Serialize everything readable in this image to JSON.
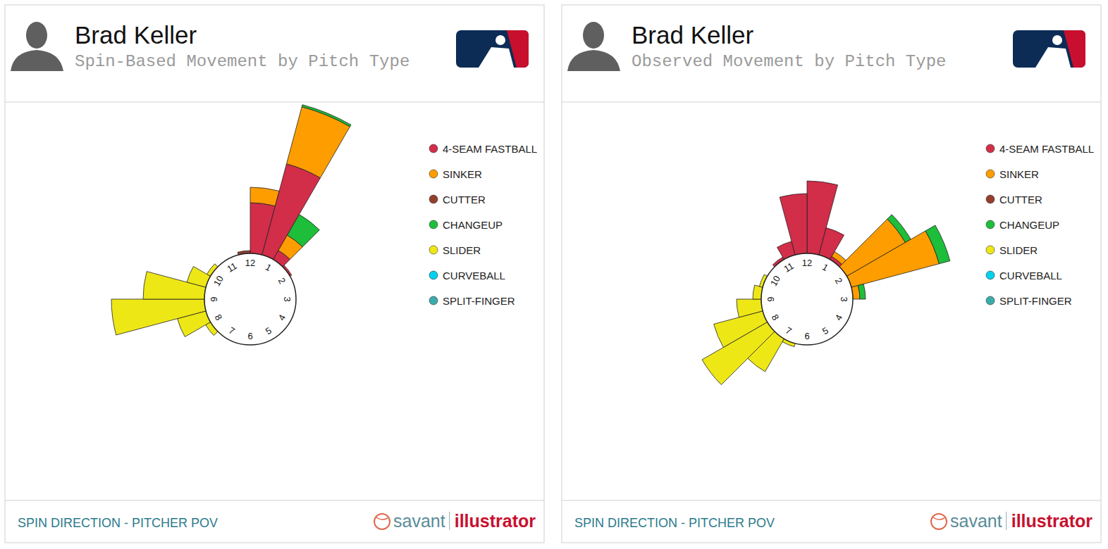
{
  "chart_data": [
    {
      "type": "polar_bar",
      "title": "Brad Keller",
      "subtitle": "Spin-Based Movement by Pitch Type",
      "footer": "SPIN DIRECTION - PITCHER POV",
      "credit": [
        "savant",
        "illustrator"
      ],
      "categories": [
        "12",
        null,
        "1",
        null,
        "2",
        null,
        "3",
        null,
        "4",
        null,
        "5",
        null,
        "6",
        null,
        "7",
        null,
        "8",
        null,
        "9",
        null,
        "10",
        null,
        "11",
        null
      ],
      "ylim": [
        0,
        250
      ],
      "stacked": true,
      "legend": "right",
      "series": [
        {
          "name": "4-SEAM FASTBALL",
          "color": "#d22d49",
          "values": [
            72,
            134,
            15,
            3,
            0,
            0,
            0,
            0,
            0,
            0,
            0,
            0,
            0,
            0,
            0,
            0,
            0,
            0,
            0,
            0,
            0,
            0,
            0,
            0
          ]
        },
        {
          "name": "SINKER",
          "color": "#fe9d00",
          "values": [
            22,
            84,
            25,
            0,
            0,
            0,
            0,
            0,
            0,
            0,
            0,
            0,
            0,
            0,
            0,
            0,
            0,
            0,
            0,
            0,
            0,
            0,
            0,
            0
          ]
        },
        {
          "name": "CUTTER",
          "color": "#933f2c",
          "values": [
            0,
            0,
            0,
            0,
            0,
            0,
            0,
            0,
            0,
            0,
            0,
            0,
            0,
            0,
            0,
            0,
            0,
            0,
            0,
            0,
            0,
            0,
            0,
            4
          ]
        },
        {
          "name": "CHANGEUP",
          "color": "#1dbe3a",
          "values": [
            0,
            3,
            34,
            0,
            0,
            0,
            0,
            0,
            0,
            0,
            0,
            0,
            0,
            0,
            0,
            0,
            0,
            0,
            0,
            0,
            0,
            0,
            0,
            0
          ]
        },
        {
          "name": "SLIDER",
          "color": "#eee716",
          "values": [
            0,
            0,
            0,
            0,
            0,
            0,
            0,
            0,
            0,
            0,
            0,
            0,
            0,
            0,
            0,
            8,
            42,
            132,
            87,
            28,
            6,
            0,
            0,
            0
          ]
        },
        {
          "name": "CURVEBALL",
          "color": "#00d1ed",
          "values": [
            0,
            0,
            0,
            0,
            0,
            0,
            0,
            0,
            0,
            0,
            0,
            0,
            0,
            0,
            0,
            0,
            0,
            0,
            0,
            0,
            0,
            0,
            0,
            0
          ]
        },
        {
          "name": "SPLIT-FINGER",
          "color": "#3bacac",
          "values": [
            0,
            0,
            0,
            0,
            0,
            0,
            0,
            0,
            0,
            0,
            0,
            0,
            0,
            0,
            0,
            0,
            0,
            0,
            0,
            0,
            0,
            0,
            0,
            0
          ]
        }
      ]
    },
    {
      "type": "polar_bar",
      "title": "Brad Keller",
      "subtitle": "Observed Movement by Pitch Type",
      "footer": "SPIN DIRECTION - PITCHER POV",
      "credit": [
        "savant",
        "illustrator"
      ],
      "categories": [
        "12",
        null,
        "1",
        null,
        "2",
        null,
        "3",
        null,
        "4",
        null,
        "5",
        null,
        "6",
        null,
        "7",
        null,
        "8",
        null,
        "9",
        null,
        "10",
        null,
        "11",
        null
      ],
      "ylim": [
        0,
        250
      ],
      "stacked": true,
      "legend": "right",
      "series": [
        {
          "name": "4-SEAM FASTBALL",
          "color": "#d22d49",
          "values": [
            103,
            40,
            5,
            0,
            0,
            0,
            0,
            0,
            0,
            0,
            0,
            0,
            0,
            0,
            0,
            0,
            0,
            0,
            0,
            0,
            0,
            4,
            20,
            85
          ]
        },
        {
          "name": "SINKER",
          "color": "#fe9d00",
          "values": [
            0,
            0,
            8,
            96,
            129,
            10,
            0,
            0,
            0,
            0,
            0,
            0,
            0,
            0,
            0,
            0,
            0,
            0,
            0,
            0,
            0,
            0,
            0,
            0
          ]
        },
        {
          "name": "CUTTER",
          "color": "#933f2c",
          "values": [
            0,
            0,
            0,
            0,
            0,
            0,
            0,
            0,
            0,
            0,
            0,
            0,
            0,
            0,
            0,
            0,
            0,
            0,
            0,
            0,
            0,
            0,
            0,
            0
          ]
        },
        {
          "name": "CHANGEUP",
          "color": "#1dbe3a",
          "values": [
            0,
            0,
            0,
            9,
            16,
            8,
            0,
            0,
            0,
            0,
            0,
            0,
            0,
            0,
            0,
            0,
            0,
            0,
            0,
            0,
            0,
            0,
            0,
            0
          ]
        },
        {
          "name": "SLIDER",
          "color": "#eee716",
          "values": [
            0,
            0,
            0,
            0,
            0,
            0,
            0,
            0,
            0,
            0,
            0,
            0,
            0,
            5,
            54,
            107,
            72,
            35,
            12,
            5,
            0,
            0,
            0,
            0
          ]
        },
        {
          "name": "CURVEBALL",
          "color": "#00d1ed",
          "values": [
            0,
            0,
            0,
            0,
            0,
            0,
            0,
            0,
            0,
            0,
            0,
            0,
            0,
            0,
            0,
            0,
            0,
            0,
            0,
            0,
            0,
            0,
            0,
            0
          ]
        },
        {
          "name": "SPLIT-FINGER",
          "color": "#3bacac",
          "values": [
            0,
            0,
            0,
            0,
            0,
            0,
            0,
            0,
            0,
            0,
            0,
            0,
            0,
            0,
            0,
            0,
            0,
            0,
            0,
            0,
            0,
            0,
            0,
            0
          ]
        }
      ]
    }
  ]
}
